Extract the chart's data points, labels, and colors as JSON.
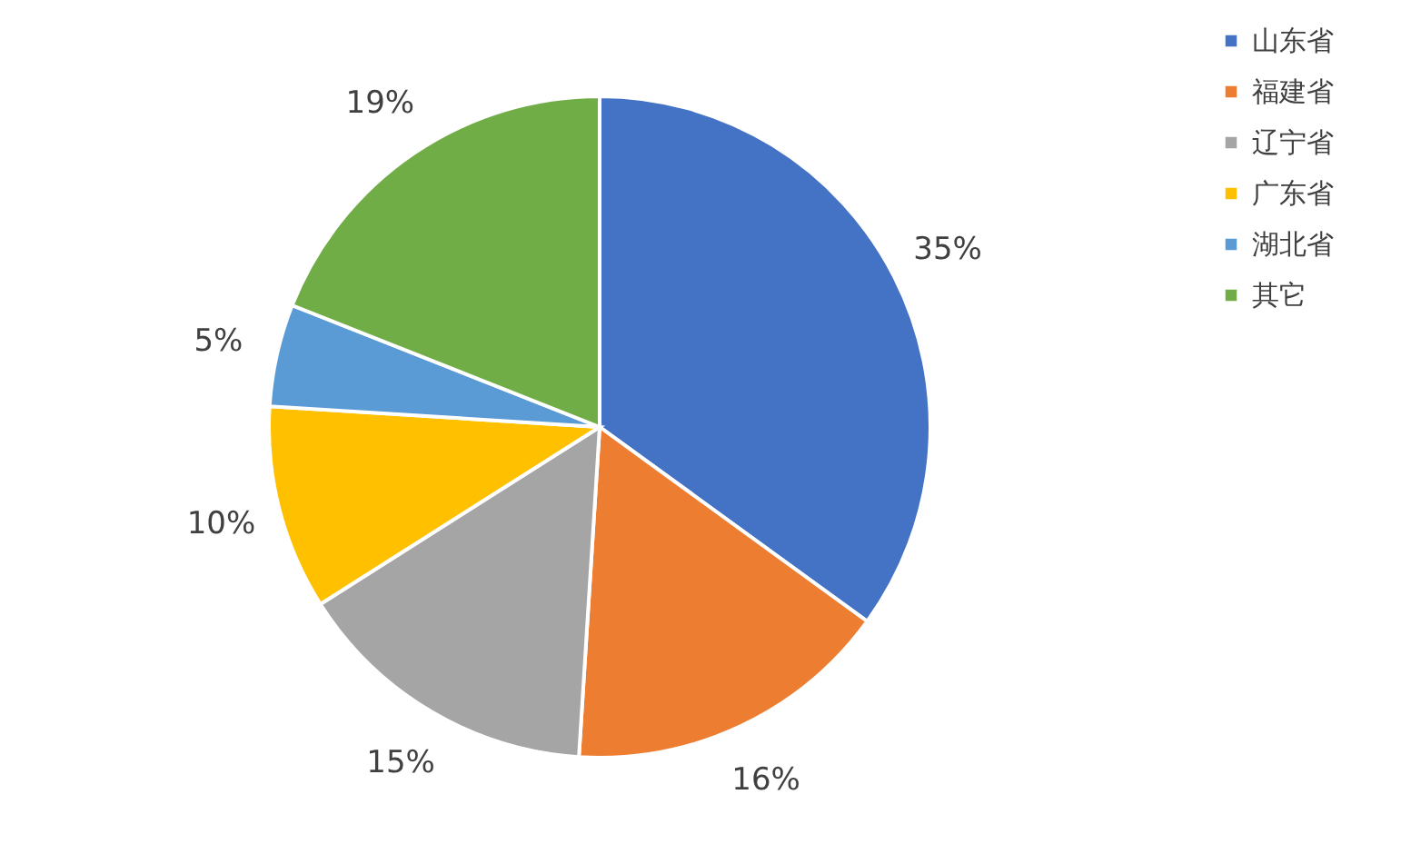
{
  "chart_data": {
    "type": "pie",
    "categories": [
      "山东省",
      "福建省",
      "辽宁省",
      "广东省",
      "湖北省",
      "其它"
    ],
    "values": [
      35,
      16,
      15,
      10,
      5,
      19
    ],
    "colors": [
      "#4472c4",
      "#ed7d31",
      "#a5a5a5",
      "#ffc000",
      "#5b9bd5",
      "#70ad47"
    ],
    "value_labels": [
      "35%",
      "16%",
      "15%",
      "10%",
      "5%",
      "19%"
    ],
    "legend": "right"
  }
}
